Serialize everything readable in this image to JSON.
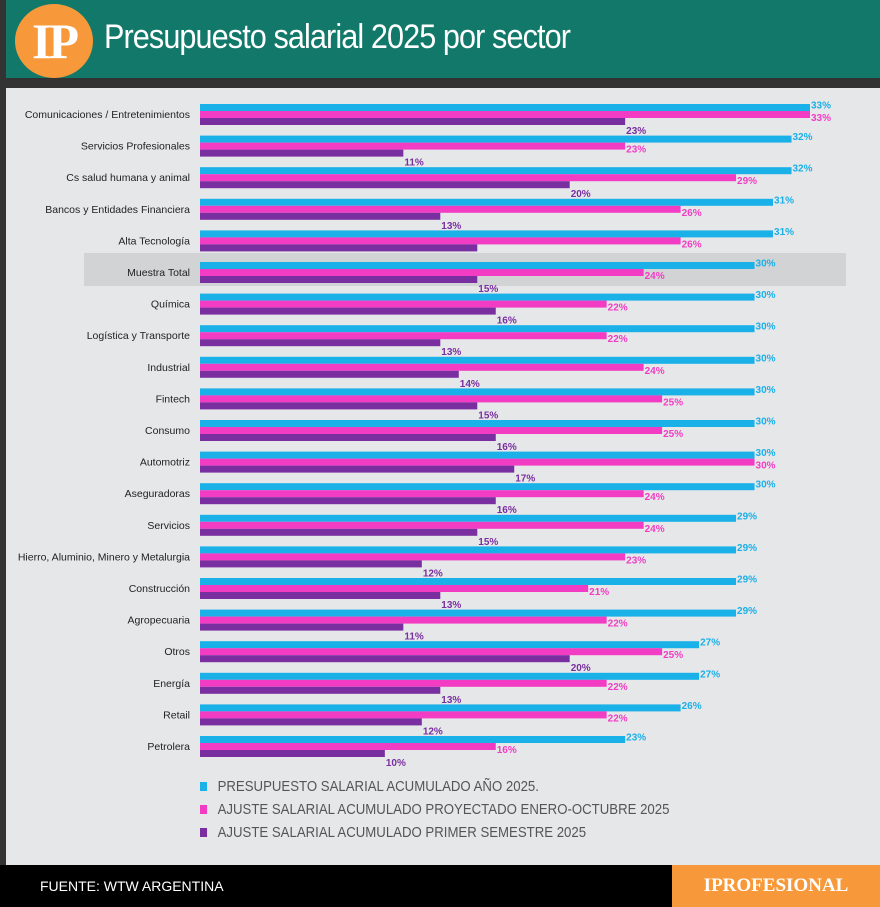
{
  "header": {
    "logo": "IP",
    "title": "Presupuesto salarial 2025 por sector"
  },
  "footer": {
    "source": "FUENTE: WTW ARGENTINA",
    "brand": "IPROFESIONAL"
  },
  "chart_data": {
    "type": "bar",
    "orientation": "horizontal",
    "highlighted_category": "Muestra Total",
    "categories": [
      "Comunicaciones / Entretenimientos",
      "Servicios Profesionales",
      "Cs salud humana y animal",
      "Bancos y Entidades Financiera",
      "Alta Tecnología",
      "Muestra Total",
      "Química",
      "Logística y Transporte",
      "Industrial",
      "Fintech",
      "Consumo",
      "Automotriz",
      "Aseguradoras",
      "Servicios",
      "Hierro, Aluminio, Minero y Metalurgia",
      "Construcción",
      "Agropecuaria",
      "Otros",
      "Energía",
      "Retail",
      "Petrolera"
    ],
    "series": [
      {
        "name": "PRESUPUESTO SALARIAL ACUMULADO AÑO 2025.",
        "color": "#1ab0e8",
        "values": [
          33,
          32,
          32,
          31,
          31,
          30,
          30,
          30,
          30,
          30,
          30,
          30,
          30,
          29,
          29,
          29,
          29,
          27,
          27,
          26,
          23
        ]
      },
      {
        "name": "AJUSTE SALARIAL ACUMULADO PROYECTADO ENERO-OCTUBRE 2025",
        "color": "#f23cc4",
        "values": [
          33,
          23,
          29,
          26,
          26,
          24,
          22,
          22,
          24,
          25,
          25,
          30,
          24,
          24,
          23,
          21,
          22,
          25,
          22,
          22,
          16
        ]
      },
      {
        "name": "AJUSTE SALARIAL ACUMULADO PRIMER SEMESTRE 2025",
        "color": "#7a2fa0",
        "values": [
          23,
          11,
          20,
          13,
          15,
          15,
          16,
          13,
          14,
          15,
          16,
          17,
          16,
          15,
          12,
          13,
          11,
          20,
          13,
          12,
          10
        ]
      }
    ],
    "value_suffix": "%",
    "xlim": [
      0,
      33
    ]
  }
}
